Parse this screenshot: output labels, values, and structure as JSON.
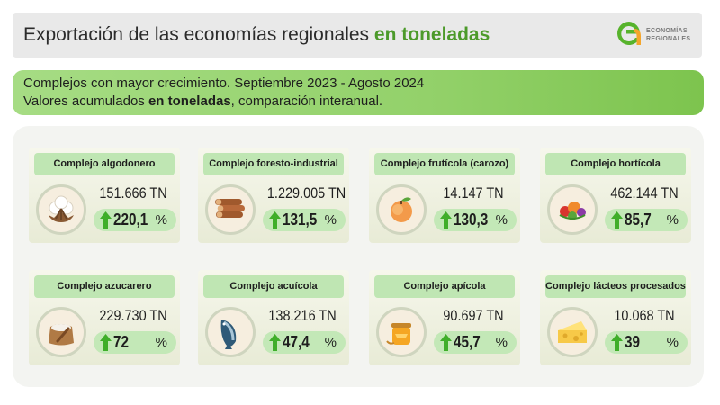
{
  "header": {
    "title_prefix": "Exportación de las economías regionales ",
    "title_accent": "en toneladas",
    "logo_line1": "ECONOMÍAS",
    "logo_line2": "REGIONALES"
  },
  "subtitle": {
    "line1": "Complejos con mayor crecimiento. Septiembre 2023 - Agosto 2024",
    "line2_prefix": "Valores acumulados ",
    "line2_bold": "en toneladas",
    "line2_suffix": ", comparación interanual."
  },
  "colors": {
    "accent": "#4c9a2a",
    "arrow": "#3fae2a",
    "label_bg": "#bfe6b3",
    "subtitle_bg": "#93d16a"
  },
  "chart_data": {
    "type": "table",
    "unit": "TN",
    "pct_unit": "%",
    "items": [
      {
        "label": "Complejo algodonero",
        "value": "151.666 TN",
        "pct": "220,1",
        "icon": "cotton-icon"
      },
      {
        "label": "Complejo foresto-industrial",
        "value": "1.229.005 TN",
        "pct": "131,5",
        "icon": "logs-icon"
      },
      {
        "label": "Complejo frutícola (carozo)",
        "value": "14.147 TN",
        "pct": "130,3",
        "icon": "peach-icon"
      },
      {
        "label": "Complejo hortícola",
        "value": "462.144 TN",
        "pct": "85,7",
        "icon": "vegetables-icon"
      },
      {
        "label": "Complejo azucarero",
        "value": "229.730 TN",
        "pct": "72",
        "icon": "sugar-sack-icon"
      },
      {
        "label": "Complejo acuícola",
        "value": "138.216 TN",
        "pct": "47,4",
        "icon": "fish-icon"
      },
      {
        "label": "Complejo apícola",
        "value": "90.697 TN",
        "pct": "45,7",
        "icon": "honey-icon"
      },
      {
        "label": "Complejo lácteos procesados",
        "value": "10.068 TN",
        "pct": "39",
        "icon": "cheese-icon"
      }
    ]
  }
}
